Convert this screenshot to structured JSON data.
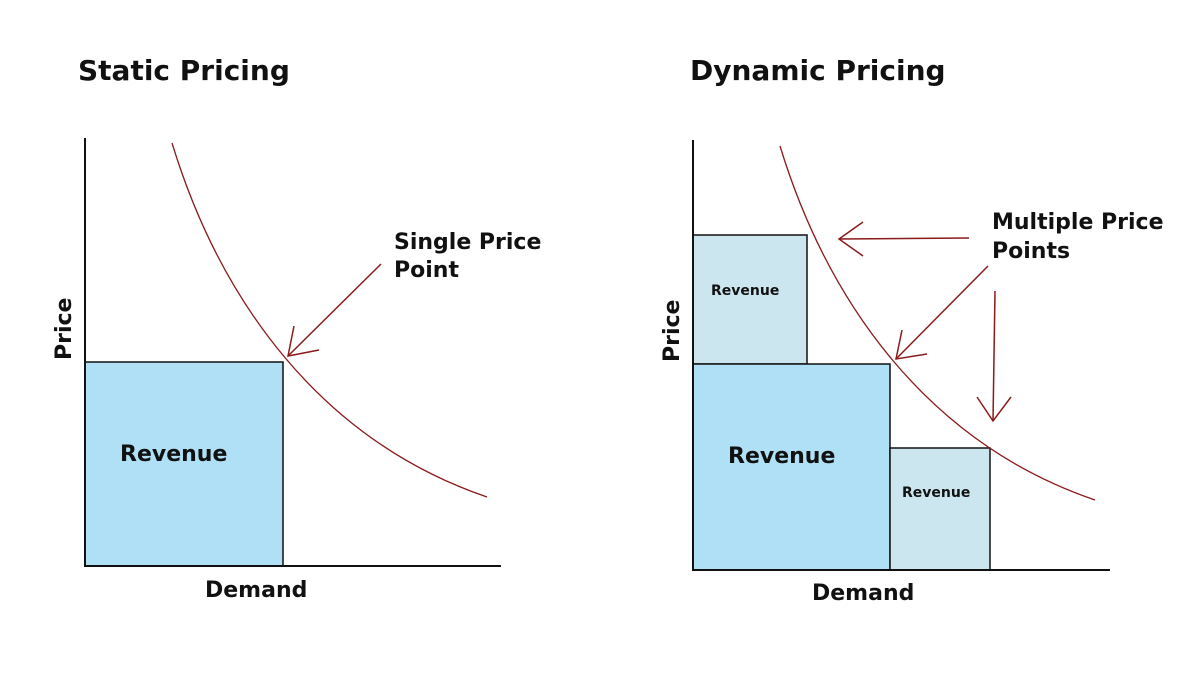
{
  "colors": {
    "curve": "#8b1a1a",
    "revenue_main": "#b0e0f5",
    "revenue_secondary": "#cce6f0",
    "axis": "#111111"
  },
  "static_panel": {
    "title": "Static Pricing",
    "y_axis_label": "Price",
    "x_axis_label": "Demand",
    "revenue_label": "Revenue",
    "annotation_line1": "Single Price",
    "annotation_line2": "Point"
  },
  "dynamic_panel": {
    "title": "Dynamic Pricing",
    "y_axis_label": "Price",
    "x_axis_label": "Demand",
    "revenue_labels": [
      "Revenue",
      "Revenue",
      "Revenue"
    ],
    "annotation_line1": "Multiple Price",
    "annotation_line2": "Points"
  }
}
